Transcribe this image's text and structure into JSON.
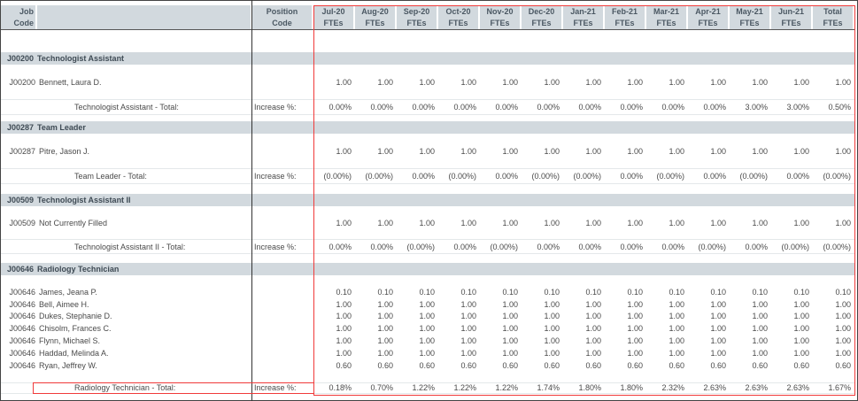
{
  "header": {
    "job_code": [
      "Job",
      "Code"
    ],
    "position_code": [
      "Position",
      "Code"
    ],
    "months": [
      [
        "Jul-20",
        "FTEs"
      ],
      [
        "Aug-20",
        "FTEs"
      ],
      [
        "Sep-20",
        "FTEs"
      ],
      [
        "Oct-20",
        "FTEs"
      ],
      [
        "Nov-20",
        "FTEs"
      ],
      [
        "Dec-20",
        "FTEs"
      ],
      [
        "Jan-21",
        "FTEs"
      ],
      [
        "Feb-21",
        "FTEs"
      ],
      [
        "Mar-21",
        "FTEs"
      ],
      [
        "Apr-21",
        "FTEs"
      ],
      [
        "May-21",
        "FTEs"
      ],
      [
        "Jun-21",
        "FTEs"
      ],
      [
        "Total",
        "FTEs"
      ]
    ]
  },
  "groups": [
    {
      "code": "J00200",
      "title": "Technologist Assistant",
      "rows": [
        {
          "code": "J00200",
          "name": "Bennett, Laura D.",
          "values": [
            "1.00",
            "1.00",
            "1.00",
            "1.00",
            "1.00",
            "1.00",
            "1.00",
            "1.00",
            "1.00",
            "1.00",
            "1.00",
            "1.00",
            "1.00"
          ]
        }
      ],
      "total": {
        "label": "Technologist Assistant - Total:",
        "position": "Increase %:",
        "values": [
          "0.00%",
          "0.00%",
          "0.00%",
          "0.00%",
          "0.00%",
          "0.00%",
          "0.00%",
          "0.00%",
          "0.00%",
          "0.00%",
          "3.00%",
          "3.00%",
          "0.50%"
        ]
      }
    },
    {
      "code": "J00287",
      "title": "Team Leader",
      "rows": [
        {
          "code": "J00287",
          "name": "Pitre, Jason J.",
          "values": [
            "1.00",
            "1.00",
            "1.00",
            "1.00",
            "1.00",
            "1.00",
            "1.00",
            "1.00",
            "1.00",
            "1.00",
            "1.00",
            "1.00",
            "1.00"
          ]
        }
      ],
      "total": {
        "label": "Team Leader - Total:",
        "position": "Increase %:",
        "values": [
          "(0.00%)",
          "(0.00%)",
          "0.00%",
          "(0.00%)",
          "0.00%",
          "(0.00%)",
          "(0.00%)",
          "0.00%",
          "(0.00%)",
          "0.00%",
          "(0.00%)",
          "0.00%",
          "(0.00%)"
        ]
      }
    },
    {
      "code": "J00509",
      "title": "Technologist Assistant II",
      "rows": [
        {
          "code": "J00509",
          "name": "Not Currently Filled",
          "values": [
            "1.00",
            "1.00",
            "1.00",
            "1.00",
            "1.00",
            "1.00",
            "1.00",
            "1.00",
            "1.00",
            "1.00",
            "1.00",
            "1.00",
            "1.00"
          ]
        }
      ],
      "total": {
        "label": "Technologist Assistant II - Total:",
        "position": "Increase %:",
        "values": [
          "0.00%",
          "0.00%",
          "(0.00%)",
          "0.00%",
          "(0.00%)",
          "0.00%",
          "0.00%",
          "0.00%",
          "0.00%",
          "(0.00%)",
          "0.00%",
          "(0.00%)",
          "(0.00%)"
        ]
      }
    },
    {
      "code": "J00646",
      "title": "Radiology Technician",
      "rows": [
        {
          "code": "J00646",
          "name": "James, Jeana P.",
          "values": [
            "0.10",
            "0.10",
            "0.10",
            "0.10",
            "0.10",
            "0.10",
            "0.10",
            "0.10",
            "0.10",
            "0.10",
            "0.10",
            "0.10",
            "0.10"
          ]
        },
        {
          "code": "J00646",
          "name": "Bell, Aimee H.",
          "values": [
            "1.00",
            "1.00",
            "1.00",
            "1.00",
            "1.00",
            "1.00",
            "1.00",
            "1.00",
            "1.00",
            "1.00",
            "1.00",
            "1.00",
            "1.00"
          ]
        },
        {
          "code": "J00646",
          "name": "Dukes, Stephanie D.",
          "values": [
            "1.00",
            "1.00",
            "1.00",
            "1.00",
            "1.00",
            "1.00",
            "1.00",
            "1.00",
            "1.00",
            "1.00",
            "1.00",
            "1.00",
            "1.00"
          ]
        },
        {
          "code": "J00646",
          "name": "Chisolm, Frances C.",
          "values": [
            "1.00",
            "1.00",
            "1.00",
            "1.00",
            "1.00",
            "1.00",
            "1.00",
            "1.00",
            "1.00",
            "1.00",
            "1.00",
            "1.00",
            "1.00"
          ]
        },
        {
          "code": "J00646",
          "name": "Flynn, Michael S.",
          "values": [
            "1.00",
            "1.00",
            "1.00",
            "1.00",
            "1.00",
            "1.00",
            "1.00",
            "1.00",
            "1.00",
            "1.00",
            "1.00",
            "1.00",
            "1.00"
          ]
        },
        {
          "code": "J00646",
          "name": "Haddad, Melinda A.",
          "values": [
            "1.00",
            "1.00",
            "1.00",
            "1.00",
            "1.00",
            "1.00",
            "1.00",
            "1.00",
            "1.00",
            "1.00",
            "1.00",
            "1.00",
            "1.00"
          ]
        },
        {
          "code": "J00646",
          "name": "Ryan, Jeffrey W.",
          "values": [
            "0.60",
            "0.60",
            "0.60",
            "0.60",
            "0.60",
            "0.60",
            "0.60",
            "0.60",
            "0.60",
            "0.60",
            "0.60",
            "0.60",
            "0.60"
          ]
        }
      ],
      "total": {
        "label": "Radiology Technician - Total:",
        "position": "Increase %:",
        "values": [
          "0.18%",
          "0.70%",
          "1.22%",
          "1.22%",
          "1.22%",
          "1.74%",
          "1.80%",
          "1.80%",
          "2.32%",
          "2.63%",
          "2.63%",
          "2.63%",
          "1.67%"
        ]
      }
    }
  ],
  "colors": {
    "header_bg": "#d2d9de",
    "highlight": "#f03a3a"
  }
}
